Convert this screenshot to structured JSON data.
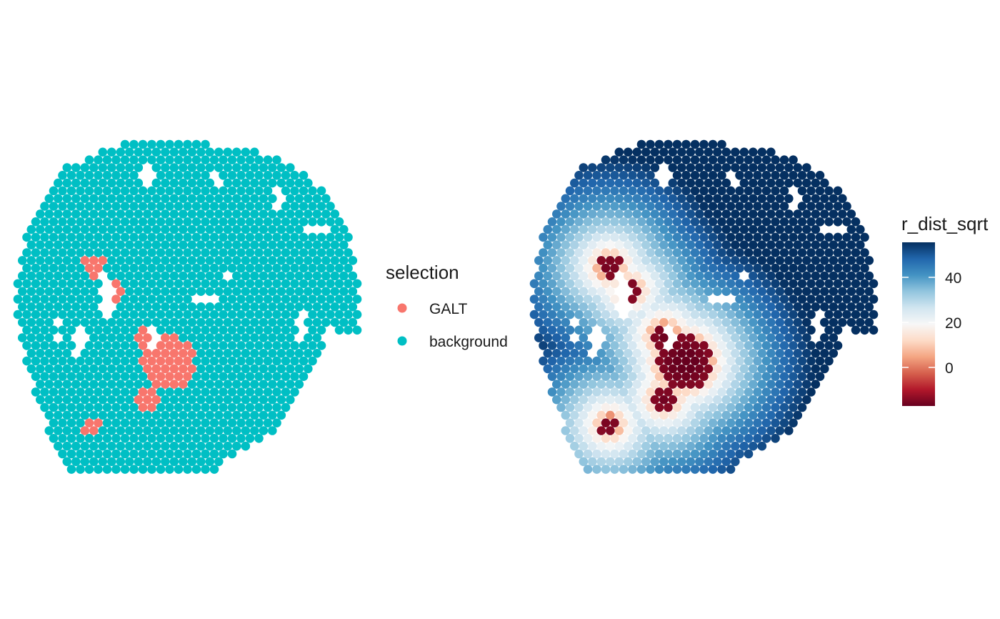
{
  "chart_data": [
    {
      "type": "scatter",
      "title": "",
      "color_variable": "selection",
      "legend": {
        "title": "selection",
        "position": "right",
        "entries": [
          {
            "label": "GALT",
            "color": "#F8766D"
          },
          {
            "label": "background",
            "color": "#00BFC4"
          }
        ]
      },
      "grid": false,
      "axes": "none",
      "spot_layout": "hexagonal grid of tissue spots",
      "galt_regions": [
        {
          "name": "GALT region 1",
          "center": [
            0.22,
            0.37
          ],
          "radius": 0.035
        },
        {
          "name": "GALT region 2",
          "center": [
            0.28,
            0.44
          ],
          "radius": 0.03
        },
        {
          "name": "GALT region 3",
          "center": [
            0.38,
            0.58
          ],
          "radius": 0.04
        },
        {
          "name": "GALT region 4",
          "center": [
            0.44,
            0.66
          ],
          "radius": 0.08
        },
        {
          "name": "GALT region 5",
          "center": [
            0.38,
            0.77
          ],
          "radius": 0.035
        },
        {
          "name": "GALT region 6",
          "center": [
            0.22,
            0.85
          ],
          "radius": 0.03
        }
      ]
    },
    {
      "type": "heatmap",
      "title": "",
      "color_variable": "r_dist_sqrt",
      "legend": {
        "title": "r_dist_sqrt",
        "position": "right",
        "ticks": [
          0,
          20,
          40
        ],
        "range": [
          -15,
          56
        ],
        "palette": [
          "#67001F",
          "#B2182B",
          "#D6604D",
          "#F4A582",
          "#FDDBC7",
          "#F7F7F7",
          "#D1E5F0",
          "#92C5DE",
          "#4393C3",
          "#2166AC",
          "#053061"
        ]
      },
      "grid": false,
      "axes": "none"
    }
  ],
  "legend_left": {
    "title": "selection",
    "items": [
      {
        "label": "GALT",
        "color": "#F8766D"
      },
      {
        "label": "background",
        "color": "#00BFC4"
      }
    ]
  },
  "legend_right": {
    "title": "r_dist_sqrt",
    "ticks": [
      "40",
      "20",
      "0"
    ]
  }
}
